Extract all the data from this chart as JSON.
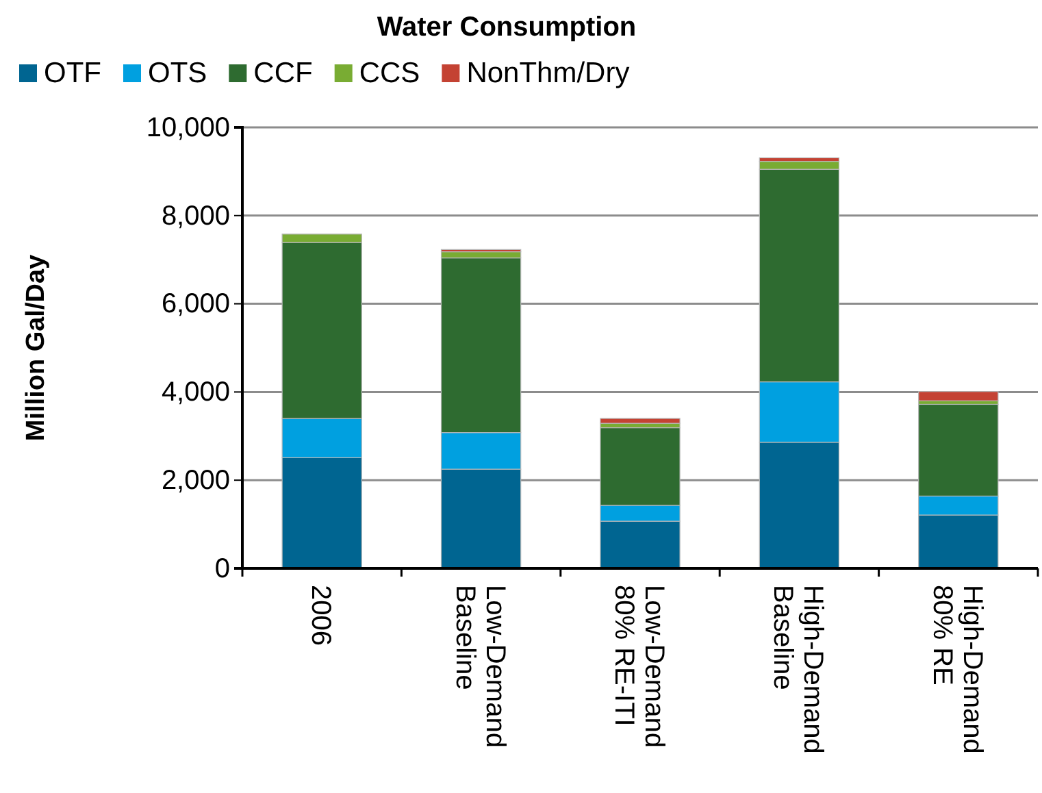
{
  "chart_data": {
    "type": "bar",
    "title": "Water Consumption",
    "ylabel": "Million  Gal/Day",
    "categories": [
      "2006",
      "Low-Demand Baseline",
      "Low-Demand 80% RE-ITI",
      "High-Demand Baseline",
      "High-Demand 80% RE"
    ],
    "stacked": true,
    "series": [
      {
        "name": "OTF",
        "color": "#006591",
        "values": [
          2510,
          2250,
          1070,
          2860,
          1210
        ]
      },
      {
        "name": "OTS",
        "color": "#00a0e0",
        "values": [
          890,
          830,
          360,
          1370,
          430
        ]
      },
      {
        "name": "CCF",
        "color": "#2e6b30",
        "values": [
          3990,
          3960,
          1760,
          4820,
          2080
        ]
      },
      {
        "name": "CCS",
        "color": "#79ac33",
        "values": [
          190,
          140,
          100,
          180,
          80
        ]
      },
      {
        "name": "NonThm/Dry",
        "color": "#c44233",
        "values": [
          0,
          50,
          110,
          80,
          210
        ]
      }
    ],
    "ylim": [
      0,
      10000
    ],
    "yticks": [
      {
        "value": 0,
        "label": "0"
      },
      {
        "value": 2000,
        "label": "2,000"
      },
      {
        "value": 4000,
        "label": "4,000"
      },
      {
        "value": 6000,
        "label": "6,000"
      },
      {
        "value": 8000,
        "label": "8,000"
      },
      {
        "value": 10000,
        "label": "10,000"
      }
    ],
    "grid": "y",
    "legend": "top"
  }
}
